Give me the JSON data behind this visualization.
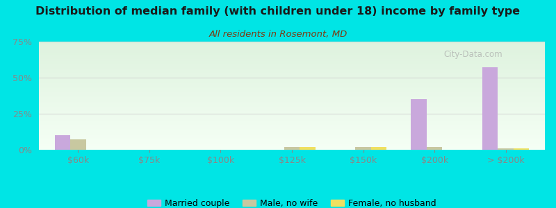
{
  "title": "Distribution of median family (with children under 18) income by family type",
  "subtitle": "All residents in Rosemont, MD",
  "categories": [
    "$60k",
    "$75k",
    "$100k",
    "$125k",
    "$150k",
    "$200k",
    "> $200k"
  ],
  "married_couple": [
    10,
    0,
    0,
    0,
    0,
    35,
    57
  ],
  "male_no_wife": [
    7,
    0,
    0,
    2,
    2,
    2,
    1
  ],
  "female_no_husband": [
    0,
    0,
    0,
    2,
    2,
    0,
    1
  ],
  "married_color": "#c9a8dc",
  "male_color": "#c8c8a0",
  "female_color": "#f0e060",
  "bg_outer": "#00e5e5",
  "title_color": "#1a1a1a",
  "subtitle_color": "#7b3a10",
  "tick_color": "#888888",
  "gridline_color": "#cccccc",
  "ylim": [
    0,
    75
  ],
  "yticks": [
    0,
    25,
    50,
    75
  ],
  "ytick_labels": [
    "0%",
    "25%",
    "50%",
    "75%"
  ],
  "bar_width": 0.22,
  "watermark": "City-Data.com",
  "legend_labels": [
    "Married couple",
    "Male, no wife",
    "Female, no husband"
  ]
}
